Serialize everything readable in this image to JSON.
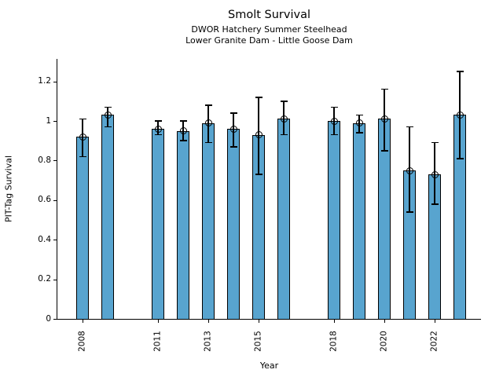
{
  "chart_data": {
    "type": "bar",
    "title": "Smolt Survival",
    "subtitle_line1": "DWOR Hatchery Summer Steelhead",
    "subtitle_line2": "Lower Granite Dam - Little Goose Dam",
    "xlabel": "Year",
    "ylabel": "PIT-Tag Survival",
    "ylim": [
      0,
      1.31
    ],
    "grid": false,
    "legend_position": "none",
    "bar_color": "#58a4cf",
    "bar_edge_color": "#000000",
    "error_bar_color": "#000000",
    "x_tick_years": [
      "2008",
      "2011",
      "2013",
      "2015",
      "2018",
      "2020",
      "2022"
    ],
    "y_ticks": [
      {
        "label": "0",
        "value": 0.0
      },
      {
        "label": "0.2",
        "value": 0.2
      },
      {
        "label": "0.4",
        "value": 0.4
      },
      {
        "label": "0.6",
        "value": 0.6
      },
      {
        "label": "0.8",
        "value": 0.8
      },
      {
        "label": "1",
        "value": 1.0
      },
      {
        "label": "1.2",
        "value": 1.2
      }
    ],
    "series": [
      {
        "year": 2008,
        "value": 0.92,
        "err_low": 0.82,
        "err_high": 1.01
      },
      {
        "year": 2009,
        "value": 1.03,
        "err_low": 0.97,
        "err_high": 1.07
      },
      {
        "year": 2011,
        "value": 0.96,
        "err_low": 0.93,
        "err_high": 1.0
      },
      {
        "year": 2012,
        "value": 0.95,
        "err_low": 0.9,
        "err_high": 1.0
      },
      {
        "year": 2013,
        "value": 0.99,
        "err_low": 0.89,
        "err_high": 1.08
      },
      {
        "year": 2014,
        "value": 0.96,
        "err_low": 0.87,
        "err_high": 1.04
      },
      {
        "year": 2015,
        "value": 0.93,
        "err_low": 0.73,
        "err_high": 1.12
      },
      {
        "year": 2016,
        "value": 1.01,
        "err_low": 0.93,
        "err_high": 1.1
      },
      {
        "year": 2018,
        "value": 1.0,
        "err_low": 0.93,
        "err_high": 1.07
      },
      {
        "year": 2019,
        "value": 0.99,
        "err_low": 0.94,
        "err_high": 1.03
      },
      {
        "year": 2020,
        "value": 1.01,
        "err_low": 0.85,
        "err_high": 1.16
      },
      {
        "year": 2021,
        "value": 0.75,
        "err_low": 0.54,
        "err_high": 0.97
      },
      {
        "year": 2022,
        "value": 0.73,
        "err_low": 0.58,
        "err_high": 0.89
      },
      {
        "year": 2023,
        "value": 1.03,
        "err_low": 0.81,
        "err_high": 1.25
      }
    ]
  }
}
